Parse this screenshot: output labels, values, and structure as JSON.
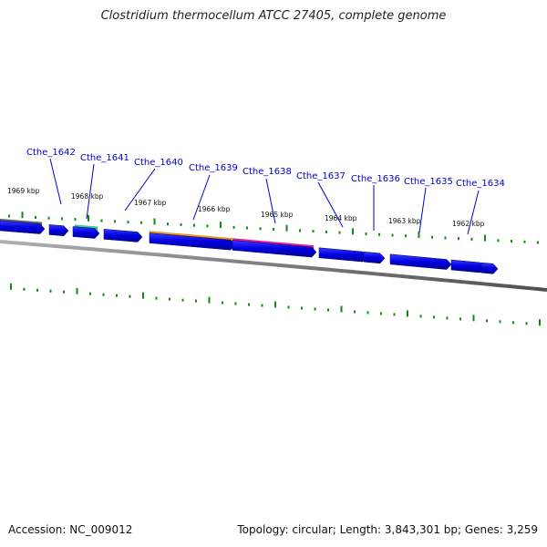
{
  "title": "Clostridium thermocellum ATCC 27405, complete genome",
  "footer": {
    "accession": "Accession: NC_009012",
    "summary": "Topology: circular; Length: 3,843,301 bp; Genes: 3,259"
  },
  "colors": {
    "gene_arrow": "#0000e0",
    "backbone": "#808080",
    "tick": "#138a13",
    "label": "#0000cc",
    "feature_gray": "#666666",
    "feature_teal": "#22dd99",
    "feature_orange": "#ff9900",
    "feature_pink": "#ff1493"
  },
  "gene_labels": [
    "Cthe_1642",
    "Cthe_1641",
    "Cthe_1640",
    "Cthe_1639",
    "Cthe_1638",
    "Cthe_1637",
    "Cthe_1636",
    "Cthe_1635",
    "Cthe_1634"
  ],
  "kbp_labels": [
    "1969 kbp",
    "1968 kbp",
    "1967 kbp",
    "1966 kbp",
    "1965 kbp",
    "1964 kbp",
    "1963 kbp",
    "1962 kbp"
  ]
}
